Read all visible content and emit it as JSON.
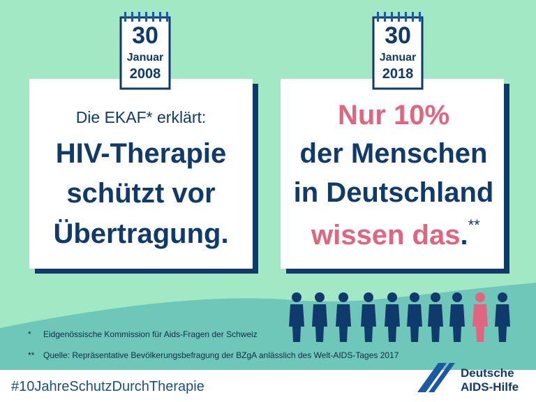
{
  "calendar_left": {
    "day": "30",
    "month": "Januar",
    "year": "2008"
  },
  "calendar_right": {
    "day": "30",
    "month": "Januar",
    "year": "2018"
  },
  "card_left": {
    "intro": "Die EKAF* erklärt:",
    "lines": [
      "HIV-Therapie",
      "schützt vor",
      "Übertragung."
    ]
  },
  "card_right": {
    "highlight": "Nur 10%",
    "lines": [
      "der Menschen",
      "in Deutschland"
    ],
    "last_highlight": "wissen das",
    "period": ".",
    "mark": "**"
  },
  "footnotes": [
    {
      "mark": "*",
      "text": "Eidgenössische Kommission für Aids-Fragen der Schweiz"
    },
    {
      "mark": "**",
      "text": "Quelle: Repräsentative Bevölkerungsbefragung der BZgA anlässlich des Welt-AIDS-Tages 2017"
    }
  ],
  "hashtag": "#10JahreSchutzDurchTherapie",
  "logo": {
    "line1": "Deutsche",
    "line2": "AIDS-Hilfe"
  }
}
